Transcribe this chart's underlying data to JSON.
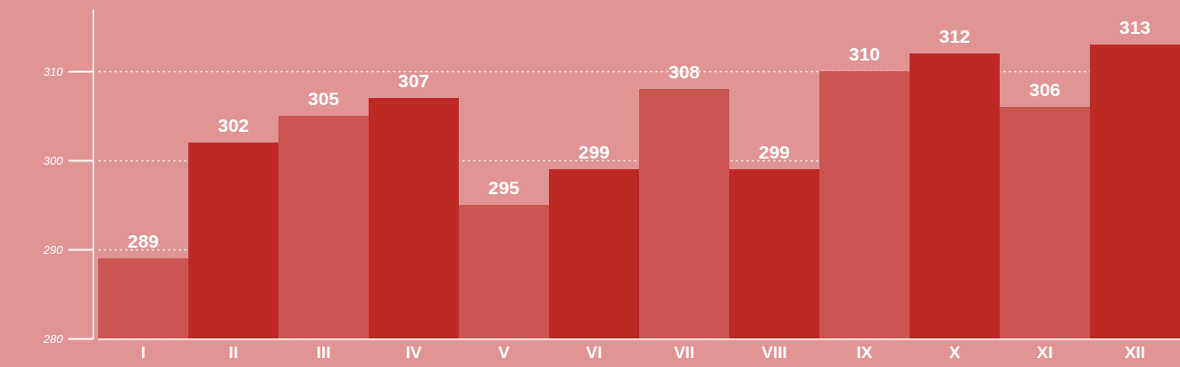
{
  "chart_data": {
    "type": "bar",
    "categories": [
      "I",
      "II",
      "III",
      "IV",
      "V",
      "VI",
      "VII",
      "VIII",
      "IX",
      "X",
      "XI",
      "XII"
    ],
    "values": [
      289,
      302,
      305,
      307,
      295,
      299,
      308,
      299,
      310,
      312,
      306,
      313
    ],
    "colors": [
      "#cb5550",
      "#be2926",
      "#cb5550",
      "#be2926",
      "#cb5550",
      "#be2926",
      "#cb5550",
      "#be2926",
      "#cb5550",
      "#be2926",
      "#cb5550",
      "#be2926"
    ],
    "ylim": [
      280,
      317
    ],
    "yticks": [
      280,
      290,
      300,
      310
    ],
    "grid": "y",
    "data_labels": true
  }
}
